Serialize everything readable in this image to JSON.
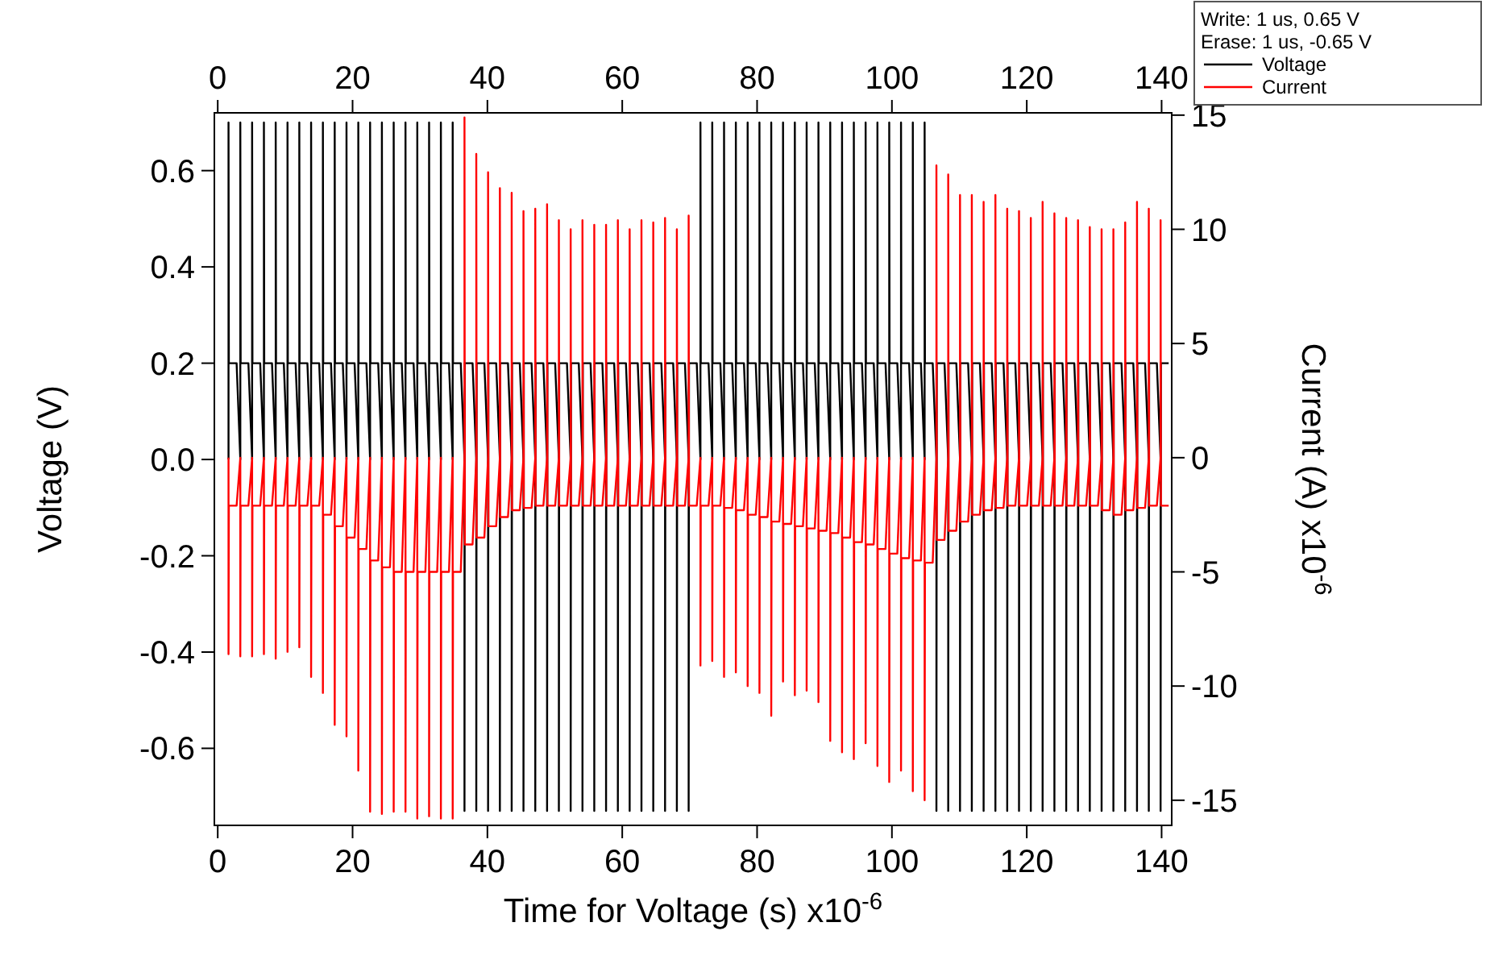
{
  "chart_data": {
    "type": "line",
    "xlabel": "Time for Voltage (s) x10$^{-6}$",
    "ylabel": "Voltage (V)",
    "y2label": "Current (A) x10$^{-6}$",
    "xlim": [
      -0.5,
      141.5
    ],
    "xticks": [
      0,
      20,
      40,
      60,
      80,
      100,
      120,
      140
    ],
    "x2lim": [
      -0.5,
      141.5
    ],
    "x2ticks": [
      0,
      20,
      40,
      60,
      80,
      100,
      120,
      140
    ],
    "ylim": [
      -0.76,
      0.72
    ],
    "yticks": [
      -0.6,
      -0.4,
      -0.2,
      {
        "value": 0,
        "label": "0.0"
      },
      0.2,
      0.4,
      0.6
    ],
    "y2lim": [
      -16.1,
      15.1
    ],
    "y2ticks": [
      -15,
      -10,
      -5,
      0,
      5,
      10,
      15
    ],
    "legend": "top right",
    "grid": false,
    "line_style": "solid",
    "marker": "none",
    "annotations": [
      "Write:  1 us, 0.65 V",
      "Erase: 1 us, -0.65 V"
    ],
    "x": [
      1.6,
      1.6,
      1.65,
      2.8,
      3.35,
      3.35,
      3.4,
      4.55,
      5.1,
      5.1,
      5.15,
      6.3,
      6.85,
      6.85,
      6.9,
      8.05,
      8.6,
      8.6,
      8.65,
      9.8,
      10.35,
      10.35,
      10.4,
      11.55,
      12.1,
      12.1,
      12.15,
      13.3,
      13.85,
      13.85,
      13.9,
      15.05,
      15.6,
      15.6,
      15.65,
      16.8,
      17.35,
      17.35,
      17.4,
      18.55,
      19.1,
      19.1,
      19.15,
      20.3,
      20.85,
      20.85,
      20.9,
      22.05,
      22.6,
      22.6,
      22.65,
      23.8,
      24.35,
      24.35,
      24.4,
      25.55,
      26.1,
      26.1,
      26.15,
      27.3,
      27.85,
      27.85,
      27.9,
      29.05,
      29.6,
      29.6,
      29.65,
      30.8,
      31.35,
      31.35,
      31.4,
      32.55,
      33.1,
      33.1,
      33.15,
      34.3,
      34.85,
      34.85,
      34.9,
      36.05,
      36.6,
      36.6,
      36.65,
      37.8,
      38.35,
      38.35,
      38.4,
      39.55,
      40.1,
      40.1,
      40.15,
      41.3,
      41.85,
      41.85,
      41.9,
      43.05,
      43.6,
      43.6,
      43.65,
      44.8,
      45.35,
      45.35,
      45.4,
      46.55,
      47.1,
      47.1,
      47.15,
      48.3,
      48.85,
      48.85,
      48.9,
      50.05,
      50.6,
      50.6,
      50.65,
      51.8,
      52.35,
      52.35,
      52.4,
      53.55,
      54.1,
      54.1,
      54.15,
      55.3,
      55.85,
      55.85,
      55.9,
      57.05,
      57.6,
      57.6,
      57.65,
      58.8,
      59.35,
      59.35,
      59.4,
      60.55,
      61.1,
      61.1,
      61.15,
      62.3,
      62.85,
      62.85,
      62.9,
      64.05,
      64.6,
      64.6,
      64.65,
      65.8,
      66.35,
      66.35,
      66.4,
      67.55,
      68.1,
      68.1,
      68.15,
      69.3,
      69.85,
      69.85,
      69.9,
      71.05,
      71.6,
      71.6,
      71.65,
      72.8,
      73.35,
      73.35,
      73.4,
      74.55,
      75.1,
      75.1,
      75.15,
      76.3,
      76.85,
      76.85,
      76.9,
      78.05,
      78.6,
      78.6,
      78.65,
      79.8,
      80.35,
      80.35,
      80.4,
      81.55,
      82.1,
      82.1,
      82.15,
      83.3,
      83.85,
      83.85,
      83.9,
      85.05,
      85.6,
      85.6,
      85.65,
      86.8,
      87.35,
      87.35,
      87.4,
      88.55,
      89.1,
      89.1,
      89.15,
      90.3,
      90.85,
      90.85,
      90.9,
      92.05,
      92.6,
      92.6,
      92.65,
      93.8,
      94.35,
      94.35,
      94.4,
      95.55,
      96.1,
      96.1,
      96.15,
      97.3,
      97.85,
      97.85,
      97.9,
      99.05,
      99.6,
      99.6,
      99.65,
      100.8,
      101.35,
      101.35,
      101.4,
      102.55,
      103.1,
      103.1,
      103.15,
      104.3,
      104.85,
      104.85,
      104.9,
      106.05,
      106.6,
      106.6,
      106.65,
      107.8,
      108.35,
      108.35,
      108.4,
      109.55,
      110.1,
      110.1,
      110.15,
      111.3,
      111.85,
      111.85,
      111.9,
      113.05,
      113.6,
      113.6,
      113.65,
      114.8,
      115.35,
      115.35,
      115.4,
      116.55,
      117.1,
      117.1,
      117.15,
      118.3,
      118.85,
      118.85,
      118.9,
      120.05,
      120.6,
      120.6,
      120.65,
      121.8,
      122.35,
      122.35,
      122.4,
      123.55,
      124.1,
      124.1,
      124.15,
      125.3,
      125.85,
      125.85,
      125.9,
      127.05,
      127.6,
      127.6,
      127.65,
      128.8,
      129.35,
      129.35,
      129.4,
      130.55,
      131.1,
      131.1,
      131.15,
      132.3,
      132.85,
      132.85,
      132.9,
      134.05,
      134.6,
      134.6,
      134.65,
      135.8,
      136.35,
      136.35,
      136.4,
      137.55,
      138.1,
      138.1,
      138.15,
      139.3,
      139.85,
      139.85,
      139.9,
      141.05
    ],
    "series": [
      {
        "name": "Voltage",
        "color": "#000000",
        "values": [
          0,
          0.7,
          0.2,
          0.2,
          0,
          0.7,
          0.2,
          0.2,
          0,
          0.7,
          0.2,
          0.2,
          0,
          0.7,
          0.2,
          0.2,
          0,
          0.7,
          0.2,
          0.2,
          0,
          0.7,
          0.2,
          0.2,
          0,
          0.7,
          0.2,
          0.2,
          0,
          0.7,
          0.2,
          0.2,
          0,
          0.7,
          0.2,
          0.2,
          0,
          0.7,
          0.2,
          0.2,
          0,
          0.7,
          0.2,
          0.2,
          0,
          0.7,
          0.2,
          0.2,
          0,
          0.7,
          0.2,
          0.2,
          0,
          0.7,
          0.2,
          0.2,
          0,
          0.7,
          0.2,
          0.2,
          0,
          0.7,
          0.2,
          0.2,
          0,
          0.7,
          0.2,
          0.2,
          0,
          0.7,
          0.2,
          0.2,
          0,
          0.7,
          0.2,
          0.2,
          0,
          0.7,
          0.2,
          0.2,
          0,
          -0.73,
          0.2,
          0.2,
          0,
          -0.73,
          0.2,
          0.2,
          0,
          -0.73,
          0.2,
          0.2,
          0,
          -0.73,
          0.2,
          0.2,
          0,
          -0.73,
          0.2,
          0.2,
          0,
          -0.73,
          0.2,
          0.2,
          0,
          -0.73,
          0.2,
          0.2,
          0,
          -0.73,
          0.2,
          0.2,
          0,
          -0.73,
          0.2,
          0.2,
          0,
          -0.73,
          0.2,
          0.2,
          0,
          -0.73,
          0.2,
          0.2,
          0,
          -0.73,
          0.2,
          0.2,
          0,
          -0.73,
          0.2,
          0.2,
          0,
          -0.73,
          0.2,
          0.2,
          0,
          -0.73,
          0.2,
          0.2,
          0,
          -0.73,
          0.2,
          0.2,
          0,
          -0.73,
          0.2,
          0.2,
          0,
          -0.73,
          0.2,
          0.2,
          0,
          -0.73,
          0.2,
          0.2,
          0,
          -0.73,
          0.2,
          0.2,
          0,
          0.7,
          0.2,
          0.2,
          0,
          0.7,
          0.2,
          0.2,
          0,
          0.7,
          0.2,
          0.2,
          0,
          0.7,
          0.2,
          0.2,
          0,
          0.7,
          0.2,
          0.2,
          0,
          0.7,
          0.2,
          0.2,
          0,
          0.7,
          0.2,
          0.2,
          0,
          0.7,
          0.2,
          0.2,
          0,
          0.7,
          0.2,
          0.2,
          0,
          0.7,
          0.2,
          0.2,
          0,
          0.7,
          0.2,
          0.2,
          0,
          0.7,
          0.2,
          0.2,
          0,
          0.7,
          0.2,
          0.2,
          0,
          0.7,
          0.2,
          0.2,
          0,
          0.7,
          0.2,
          0.2,
          0,
          0.7,
          0.2,
          0.2,
          0,
          0.7,
          0.2,
          0.2,
          0,
          0.7,
          0.2,
          0.2,
          0,
          0.7,
          0.2,
          0.2,
          0,
          0.7,
          0.2,
          0.2,
          0,
          -0.73,
          0.2,
          0.2,
          0,
          -0.73,
          0.2,
          0.2,
          0,
          -0.73,
          0.2,
          0.2,
          0,
          -0.73,
          0.2,
          0.2,
          0,
          -0.73,
          0.2,
          0.2,
          0,
          -0.73,
          0.2,
          0.2,
          0,
          -0.73,
          0.2,
          0.2,
          0,
          -0.73,
          0.2,
          0.2,
          0,
          -0.73,
          0.2,
          0.2,
          0,
          -0.73,
          0.2,
          0.2,
          0,
          -0.73,
          0.2,
          0.2,
          0,
          -0.73,
          0.2,
          0.2,
          0,
          -0.73,
          0.2,
          0.2,
          0,
          -0.73,
          0.2,
          0.2,
          0,
          -0.73,
          0.2,
          0.2,
          0,
          -0.73,
          0.2,
          0.2,
          0,
          -0.73,
          0.2,
          0.2,
          0,
          -0.73,
          0.2,
          0.2,
          0,
          -0.73,
          0.2,
          0.2,
          0,
          -0.73,
          0.2,
          0.2
        ]
      },
      {
        "name": "Current",
        "color": "#ff0000",
        "axis": "y2",
        "values": [
          0,
          -8.6,
          -2.1,
          -2.1,
          0,
          -8.7,
          -2.1,
          -2.1,
          0,
          -8.7,
          -2.1,
          -2.1,
          0,
          -8.6,
          -2.1,
          -2.1,
          0,
          -8.8,
          -2.1,
          -2.1,
          0,
          -8.5,
          -2.1,
          -2.1,
          0,
          -8.3,
          -2.1,
          -2.1,
          0,
          -9.6,
          -2.1,
          -2.1,
          0,
          -10.3,
          -2.5,
          -2.5,
          0,
          -11.7,
          -3,
          -3,
          0,
          -12.2,
          -3.5,
          -3.5,
          0,
          -13.7,
          -4,
          -4,
          0,
          -15.5,
          -4.5,
          -4.5,
          0,
          -15.6,
          -4.8,
          -4.8,
          0,
          -15.5,
          -5,
          -5,
          0,
          -15.5,
          -5,
          -5,
          0,
          -15.8,
          -5,
          -5,
          0,
          -15.7,
          -5,
          -5,
          0,
          -15.8,
          -5,
          -5,
          0,
          -15.8,
          -5,
          -5,
          0,
          14.9,
          -3.8,
          -3.8,
          0,
          13.3,
          -3.5,
          -3.5,
          0,
          12.5,
          -3,
          -3,
          0,
          11.8,
          -2.6,
          -2.6,
          0,
          11.6,
          -2.3,
          -2.3,
          0,
          10.8,
          -2.2,
          -2.2,
          0,
          10.9,
          -2.1,
          -2.1,
          0,
          11.1,
          -2.1,
          -2.1,
          0,
          10.4,
          -2.1,
          -2.1,
          0,
          10,
          -2.1,
          -2.1,
          0,
          10.4,
          -2.1,
          -2.1,
          0,
          10.2,
          -2.1,
          -2.1,
          0,
          10.2,
          -2.1,
          -2.1,
          0,
          10.4,
          -2.1,
          -2.1,
          0,
          10,
          -2.1,
          -2.1,
          0,
          10.4,
          -2.1,
          -2.1,
          0,
          10.3,
          -2.1,
          -2.1,
          0,
          10.5,
          -2.1,
          -2.1,
          0,
          10,
          -2.1,
          -2.1,
          0,
          10.6,
          -2.1,
          -2.1,
          0,
          -9.1,
          -2.1,
          -2.1,
          0,
          -8.9,
          -2.1,
          -2.1,
          0,
          -9.6,
          -2.2,
          -2.2,
          0,
          -9.4,
          -2.3,
          -2.3,
          0,
          -10,
          -2.5,
          -2.5,
          0,
          -10.3,
          -2.6,
          -2.6,
          0,
          -11.3,
          -2.8,
          -2.8,
          0,
          -9.8,
          -2.9,
          -2.9,
          0,
          -10.4,
          -3,
          -3,
          0,
          -10.2,
          -3.1,
          -3.1,
          0,
          -10.7,
          -3.2,
          -3.2,
          0,
          -12.4,
          -3.3,
          -3.3,
          0,
          -12.9,
          -3.5,
          -3.5,
          0,
          -13.2,
          -3.7,
          -3.7,
          0,
          -12.5,
          -3.8,
          -3.8,
          0,
          -13.5,
          -4,
          -4,
          0,
          -14.2,
          -4.2,
          -4.2,
          0,
          -13.7,
          -4.4,
          -4.4,
          0,
          -14.6,
          -4.5,
          -4.5,
          0,
          -15,
          -4.6,
          -4.6,
          0,
          12.8,
          -3.6,
          -3.6,
          0,
          12.4,
          -3.2,
          -3.2,
          0,
          11.5,
          -2.8,
          -2.8,
          0,
          11.5,
          -2.5,
          -2.5,
          0,
          11.2,
          -2.3,
          -2.3,
          0,
          11.5,
          -2.2,
          -2.2,
          0,
          10.9,
          -2.1,
          -2.1,
          0,
          10.8,
          -2.1,
          -2.1,
          0,
          10.5,
          -2.1,
          -2.1,
          0,
          11.2,
          -2.1,
          -2.1,
          0,
          10.7,
          -2.1,
          -2.1,
          0,
          10.5,
          -2.1,
          -2.1,
          0,
          10.4,
          -2.1,
          -2.1,
          0,
          10.1,
          -2.1,
          -2.1,
          0,
          10,
          -2.3,
          -2.3,
          0,
          10,
          -2.5,
          -2.5,
          0,
          10.3,
          -2.3,
          -2.3,
          0,
          11.2,
          -2.2,
          -2.2,
          0,
          10.9,
          -2.1,
          -2.1,
          0,
          10.4,
          -2.1,
          -2.1
        ]
      }
    ]
  }
}
